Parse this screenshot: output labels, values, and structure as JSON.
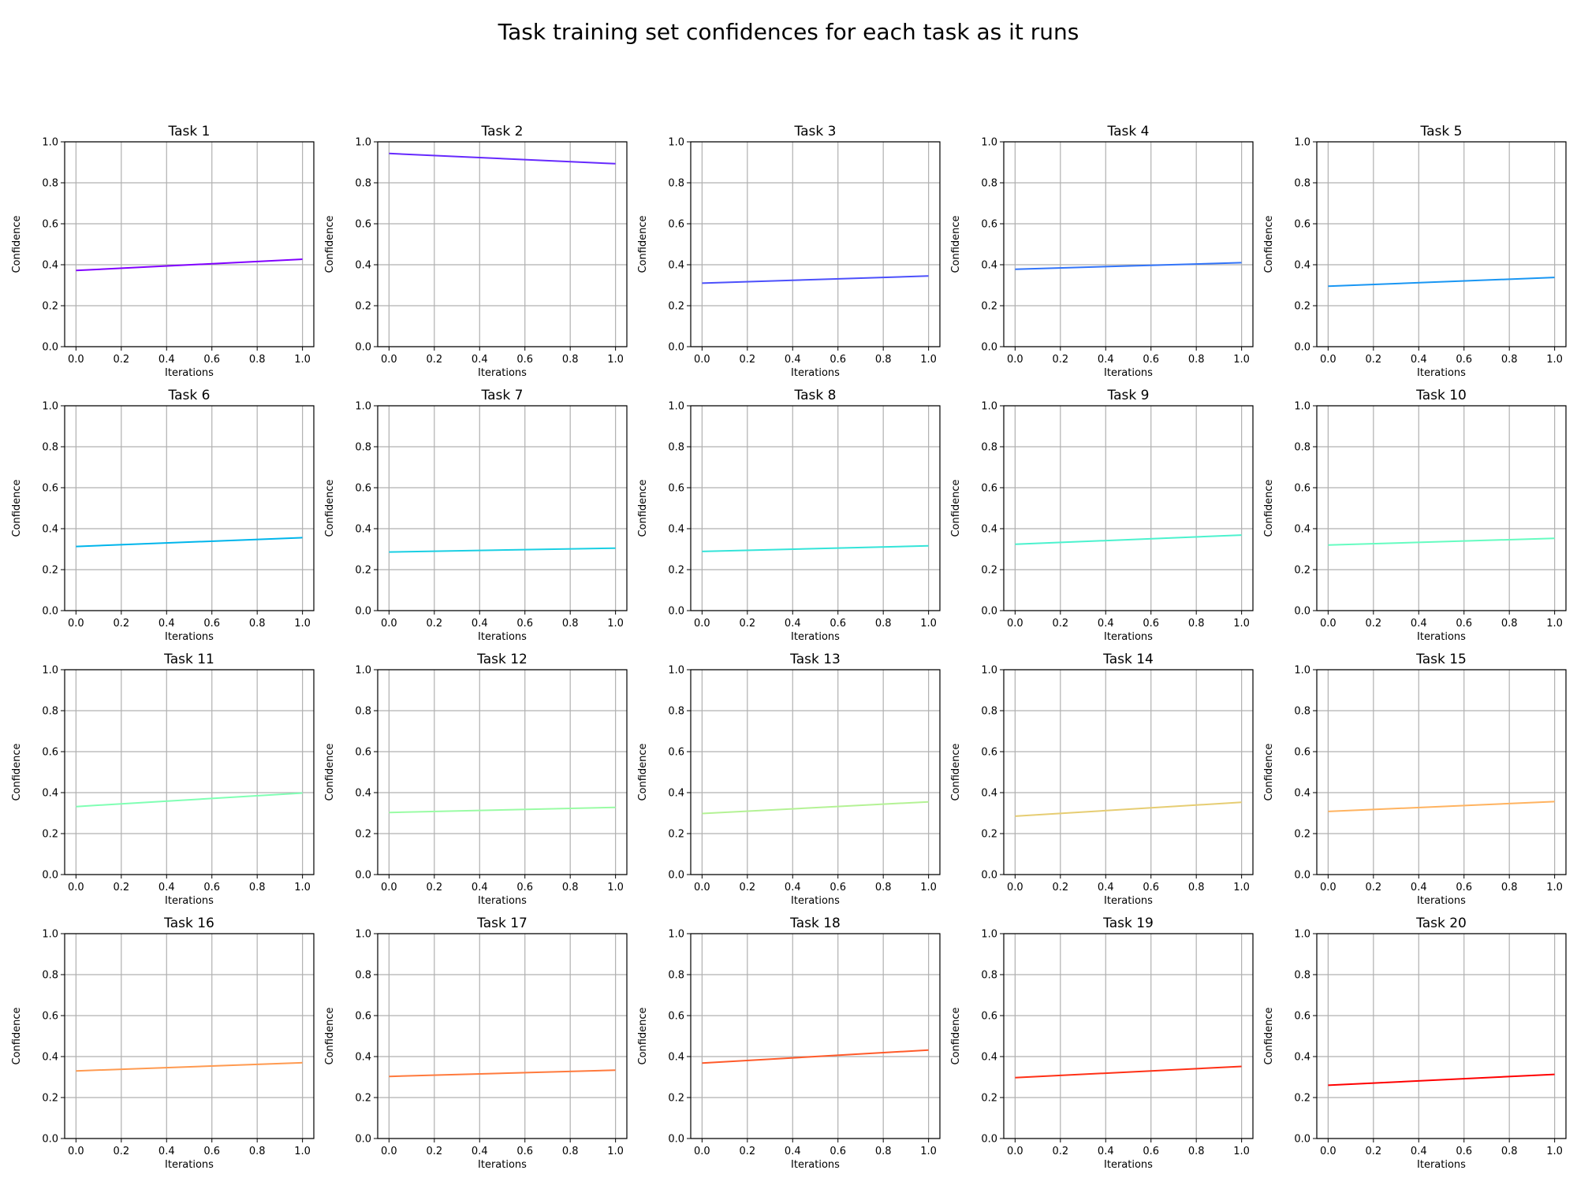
{
  "figure": {
    "title": "Task training set confidences for each task as it runs"
  },
  "chart_data": [
    {
      "type": "line",
      "title": "Task 1",
      "xlabel": "Iterations",
      "ylabel": "Confidence",
      "xlim": [
        -0.05,
        1.05
      ],
      "ylim": [
        0,
        1
      ],
      "xticks": [
        "0.0",
        "0.2",
        "0.4",
        "0.6",
        "0.8",
        "1.0"
      ],
      "yticks": [
        "0.0",
        "0.2",
        "0.4",
        "0.6",
        "0.8",
        "1.0"
      ],
      "grid": true,
      "color": "#8000ff",
      "x": [
        0,
        1
      ],
      "y": [
        0.372,
        0.427
      ]
    },
    {
      "type": "line",
      "title": "Task 2",
      "xlabel": "Iterations",
      "ylabel": "Confidence",
      "xlim": [
        -0.05,
        1.05
      ],
      "ylim": [
        0,
        1
      ],
      "xticks": [
        "0.0",
        "0.2",
        "0.4",
        "0.6",
        "0.8",
        "1.0"
      ],
      "yticks": [
        "0.0",
        "0.2",
        "0.4",
        "0.6",
        "0.8",
        "1.0"
      ],
      "grid": true,
      "color": "#6629fe",
      "x": [
        0,
        1
      ],
      "y": [
        0.943,
        0.893
      ]
    },
    {
      "type": "line",
      "title": "Task 3",
      "xlabel": "Iterations",
      "ylabel": "Confidence",
      "xlim": [
        -0.05,
        1.05
      ],
      "ylim": [
        0,
        1
      ],
      "xticks": [
        "0.0",
        "0.2",
        "0.4",
        "0.6",
        "0.8",
        "1.0"
      ],
      "yticks": [
        "0.0",
        "0.2",
        "0.4",
        "0.6",
        "0.8",
        "1.0"
      ],
      "grid": true,
      "color": "#4c50fc",
      "x": [
        0,
        1
      ],
      "y": [
        0.31,
        0.345
      ]
    },
    {
      "type": "line",
      "title": "Task 4",
      "xlabel": "Iterations",
      "ylabel": "Confidence",
      "xlim": [
        -0.05,
        1.05
      ],
      "ylim": [
        0,
        1
      ],
      "xticks": [
        "0.0",
        "0.2",
        "0.4",
        "0.6",
        "0.8",
        "1.0"
      ],
      "yticks": [
        "0.0",
        "0.2",
        "0.4",
        "0.6",
        "0.8",
        "1.0"
      ],
      "grid": true,
      "color": "#3274f9",
      "x": [
        0,
        1
      ],
      "y": [
        0.378,
        0.41
      ]
    },
    {
      "type": "line",
      "title": "Task 5",
      "xlabel": "Iterations",
      "ylabel": "Confidence",
      "xlim": [
        -0.05,
        1.05
      ],
      "ylim": [
        0,
        1
      ],
      "xticks": [
        "0.0",
        "0.2",
        "0.4",
        "0.6",
        "0.8",
        "1.0"
      ],
      "yticks": [
        "0.0",
        "0.2",
        "0.4",
        "0.6",
        "0.8",
        "1.0"
      ],
      "grid": true,
      "color": "#1996f3",
      "x": [
        0,
        1
      ],
      "y": [
        0.295,
        0.338
      ]
    },
    {
      "type": "line",
      "title": "Task 6",
      "xlabel": "Iterations",
      "ylabel": "Confidence",
      "xlim": [
        -0.05,
        1.05
      ],
      "ylim": [
        0,
        1
      ],
      "xticks": [
        "0.0",
        "0.2",
        "0.4",
        "0.6",
        "0.8",
        "1.0"
      ],
      "yticks": [
        "0.0",
        "0.2",
        "0.4",
        "0.6",
        "0.8",
        "1.0"
      ],
      "grid": true,
      "color": "#00b5eb",
      "x": [
        0,
        1
      ],
      "y": [
        0.313,
        0.356
      ]
    },
    {
      "type": "line",
      "title": "Task 7",
      "xlabel": "Iterations",
      "ylabel": "Confidence",
      "xlim": [
        -0.05,
        1.05
      ],
      "ylim": [
        0,
        1
      ],
      "xticks": [
        "0.0",
        "0.2",
        "0.4",
        "0.6",
        "0.8",
        "1.0"
      ],
      "yticks": [
        "0.0",
        "0.2",
        "0.4",
        "0.6",
        "0.8",
        "1.0"
      ],
      "grid": true,
      "color": "#1acfe3",
      "x": [
        0,
        1
      ],
      "y": [
        0.286,
        0.305
      ]
    },
    {
      "type": "line",
      "title": "Task 8",
      "xlabel": "Iterations",
      "ylabel": "Confidence",
      "xlim": [
        -0.05,
        1.05
      ],
      "ylim": [
        0,
        1
      ],
      "xticks": [
        "0.0",
        "0.2",
        "0.4",
        "0.6",
        "0.8",
        "1.0"
      ],
      "yticks": [
        "0.0",
        "0.2",
        "0.4",
        "0.6",
        "0.8",
        "1.0"
      ],
      "grid": true,
      "color": "#34e4d9",
      "x": [
        0,
        1
      ],
      "y": [
        0.289,
        0.316
      ]
    },
    {
      "type": "line",
      "title": "Task 9",
      "xlabel": "Iterations",
      "ylabel": "Confidence",
      "xlim": [
        -0.05,
        1.05
      ],
      "ylim": [
        0,
        1
      ],
      "xticks": [
        "0.0",
        "0.2",
        "0.4",
        "0.6",
        "0.8",
        "1.0"
      ],
      "yticks": [
        "0.0",
        "0.2",
        "0.4",
        "0.6",
        "0.8",
        "1.0"
      ],
      "grid": true,
      "color": "#4cf2ce",
      "x": [
        0,
        1
      ],
      "y": [
        0.324,
        0.369
      ]
    },
    {
      "type": "line",
      "title": "Task 10",
      "xlabel": "Iterations",
      "ylabel": "Confidence",
      "xlim": [
        -0.05,
        1.05
      ],
      "ylim": [
        0,
        1
      ],
      "xticks": [
        "0.0",
        "0.2",
        "0.4",
        "0.6",
        "0.8",
        "1.0"
      ],
      "yticks": [
        "0.0",
        "0.2",
        "0.4",
        "0.6",
        "0.8",
        "1.0"
      ],
      "grid": true,
      "color": "#66fcc1",
      "x": [
        0,
        1
      ],
      "y": [
        0.32,
        0.353
      ]
    },
    {
      "type": "line",
      "title": "Task 11",
      "xlabel": "Iterations",
      "ylabel": "Confidence",
      "xlim": [
        -0.05,
        1.05
      ],
      "ylim": [
        0,
        1
      ],
      "xticks": [
        "0.0",
        "0.2",
        "0.4",
        "0.6",
        "0.8",
        "1.0"
      ],
      "yticks": [
        "0.0",
        "0.2",
        "0.4",
        "0.6",
        "0.8",
        "1.0"
      ],
      "grid": true,
      "color": "#80ffb4",
      "x": [
        0,
        1
      ],
      "y": [
        0.332,
        0.398
      ]
    },
    {
      "type": "line",
      "title": "Task 12",
      "xlabel": "Iterations",
      "ylabel": "Confidence",
      "xlim": [
        -0.05,
        1.05
      ],
      "ylim": [
        0,
        1
      ],
      "xticks": [
        "0.0",
        "0.2",
        "0.4",
        "0.6",
        "0.8",
        "1.0"
      ],
      "yticks": [
        "0.0",
        "0.2",
        "0.4",
        "0.6",
        "0.8",
        "1.0"
      ],
      "grid": true,
      "color": "#9afca5",
      "x": [
        0,
        1
      ],
      "y": [
        0.303,
        0.328
      ]
    },
    {
      "type": "line",
      "title": "Task 13",
      "xlabel": "Iterations",
      "ylabel": "Confidence",
      "xlim": [
        -0.05,
        1.05
      ],
      "ylim": [
        0,
        1
      ],
      "xticks": [
        "0.0",
        "0.2",
        "0.4",
        "0.6",
        "0.8",
        "1.0"
      ],
      "yticks": [
        "0.0",
        "0.2",
        "0.4",
        "0.6",
        "0.8",
        "1.0"
      ],
      "grid": true,
      "color": "#b4f295",
      "x": [
        0,
        1
      ],
      "y": [
        0.298,
        0.355
      ]
    },
    {
      "type": "line",
      "title": "Task 14",
      "xlabel": "Iterations",
      "ylabel": "Confidence",
      "xlim": [
        -0.05,
        1.05
      ],
      "ylim": [
        0,
        1
      ],
      "xticks": [
        "0.0",
        "0.2",
        "0.4",
        "0.6",
        "0.8",
        "1.0"
      ],
      "yticks": [
        "0.0",
        "0.2",
        "0.4",
        "0.6",
        "0.8",
        "1.0"
      ],
      "grid": true,
      "color": "#e6cd73",
      "x": [
        0,
        1
      ],
      "y": [
        0.285,
        0.353
      ]
    },
    {
      "type": "line",
      "title": "Task 15",
      "xlabel": "Iterations",
      "ylabel": "Confidence",
      "xlim": [
        -0.05,
        1.05
      ],
      "ylim": [
        0,
        1
      ],
      "xticks": [
        "0.0",
        "0.2",
        "0.4",
        "0.6",
        "0.8",
        "1.0"
      ],
      "yticks": [
        "0.0",
        "0.2",
        "0.4",
        "0.6",
        "0.8",
        "1.0"
      ],
      "grid": true,
      "color": "#ffb360",
      "x": [
        0,
        1
      ],
      "y": [
        0.308,
        0.356
      ]
    },
    {
      "type": "line",
      "title": "Task 16",
      "xlabel": "Iterations",
      "ylabel": "Confidence",
      "xlim": [
        -0.05,
        1.05
      ],
      "ylim": [
        0,
        1
      ],
      "xticks": [
        "0.0",
        "0.2",
        "0.4",
        "0.6",
        "0.8",
        "1.0"
      ],
      "yticks": [
        "0.0",
        "0.2",
        "0.4",
        "0.6",
        "0.8",
        "1.0"
      ],
      "grid": true,
      "color": "#ff9a50",
      "x": [
        0,
        1
      ],
      "y": [
        0.33,
        0.37
      ]
    },
    {
      "type": "line",
      "title": "Task 17",
      "xlabel": "Iterations",
      "ylabel": "Confidence",
      "xlim": [
        -0.05,
        1.05
      ],
      "ylim": [
        0,
        1
      ],
      "xticks": [
        "0.0",
        "0.2",
        "0.4",
        "0.6",
        "0.8",
        "1.0"
      ],
      "yticks": [
        "0.0",
        "0.2",
        "0.4",
        "0.6",
        "0.8",
        "1.0"
      ],
      "grid": true,
      "color": "#ff7a3d",
      "x": [
        0,
        1
      ],
      "y": [
        0.303,
        0.334
      ]
    },
    {
      "type": "line",
      "title": "Task 18",
      "xlabel": "Iterations",
      "ylabel": "Confidence",
      "xlim": [
        -0.05,
        1.05
      ],
      "ylim": [
        0,
        1
      ],
      "xticks": [
        "0.0",
        "0.2",
        "0.4",
        "0.6",
        "0.8",
        "1.0"
      ],
      "yticks": [
        "0.0",
        "0.2",
        "0.4",
        "0.6",
        "0.8",
        "1.0"
      ],
      "grid": true,
      "color": "#ff5a2a",
      "x": [
        0,
        1
      ],
      "y": [
        0.368,
        0.432
      ]
    },
    {
      "type": "line",
      "title": "Task 19",
      "xlabel": "Iterations",
      "ylabel": "Confidence",
      "xlim": [
        -0.05,
        1.05
      ],
      "ylim": [
        0,
        1
      ],
      "xticks": [
        "0.0",
        "0.2",
        "0.4",
        "0.6",
        "0.8",
        "1.0"
      ],
      "yticks": [
        "0.0",
        "0.2",
        "0.4",
        "0.6",
        "0.8",
        "1.0"
      ],
      "grid": true,
      "color": "#ff3016",
      "x": [
        0,
        1
      ],
      "y": [
        0.297,
        0.352
      ]
    },
    {
      "type": "line",
      "title": "Task 20",
      "xlabel": "Iterations",
      "ylabel": "Confidence",
      "xlim": [
        -0.05,
        1.05
      ],
      "ylim": [
        0,
        1
      ],
      "xticks": [
        "0.0",
        "0.2",
        "0.4",
        "0.6",
        "0.8",
        "1.0"
      ],
      "yticks": [
        "0.0",
        "0.2",
        "0.4",
        "0.6",
        "0.8",
        "1.0"
      ],
      "grid": true,
      "color": "#ff0000",
      "x": [
        0,
        1
      ],
      "y": [
        0.26,
        0.313
      ]
    }
  ]
}
